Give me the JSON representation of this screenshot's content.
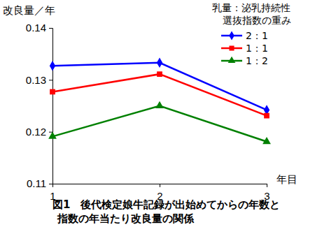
{
  "chart_data": {
    "type": "line",
    "title": "図1　後代検定娘牛記録が出始めてからの年数と\n指数の年当たり改良量の関係",
    "y_label": "改良量／年",
    "x_label": "年目",
    "legend_title": "乳量：泌乳持続性\n選抜指数の重み",
    "legend": "top-right",
    "grid": false,
    "categories": [
      "1",
      "2",
      "3"
    ],
    "ylim": [
      0.11,
      0.14
    ],
    "yticks": [
      0.11,
      0.12,
      0.13,
      0.14
    ],
    "series": [
      {
        "name": "2：1",
        "color": "#0000ff",
        "marker": "diamond",
        "values": [
          0.1327,
          0.1333,
          0.1242
        ]
      },
      {
        "name": "1：1",
        "color": "#ff0000",
        "marker": "square",
        "values": [
          0.1277,
          0.1311,
          0.1231
        ]
      },
      {
        "name": "1：2",
        "color": "#008000",
        "marker": "triangle",
        "values": [
          0.1191,
          0.125,
          0.1181
        ]
      }
    ]
  }
}
